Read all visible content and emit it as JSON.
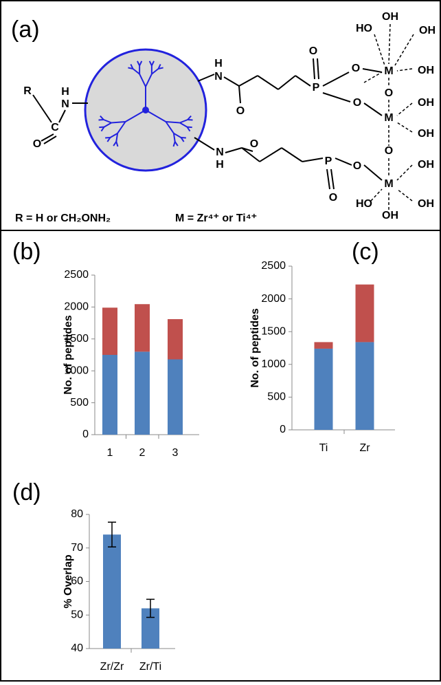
{
  "diagram": {
    "panel_label": "(a)",
    "atoms": [
      "R",
      "H",
      "N",
      "C",
      "O",
      "H",
      "N",
      "O",
      "P",
      "O",
      "O",
      "O",
      "N",
      "H",
      "O",
      "P",
      "O",
      "O",
      "M",
      "M",
      "M",
      "O",
      "O",
      "HO",
      "OH",
      "OH",
      "OH",
      "OH",
      "OH",
      "OH",
      "OH",
      "OH",
      "HO"
    ],
    "notes": [
      "R = H or CH₂ONH₂",
      "M = Zr⁴⁺ or Ti⁴⁺"
    ]
  },
  "chart_data": [
    {
      "type": "bar",
      "title": "(b)",
      "y_label": "No. of peptides",
      "categories": [
        "1",
        "2",
        "3"
      ],
      "series": [
        {
          "color": "#4f81bd",
          "values": [
            1250,
            1300,
            1180
          ]
        },
        {
          "color": "#c0504d",
          "values": [
            740,
            745,
            630
          ]
        }
      ],
      "ylim": [
        0,
        2500
      ],
      "yticks": [
        0,
        500,
        1000,
        1500,
        2000,
        2500
      ]
    },
    {
      "type": "bar",
      "title": "(c)",
      "y_label": "No. of peptides",
      "categories": [
        "Ti",
        "Zr"
      ],
      "series": [
        {
          "color": "#4f81bd",
          "values": [
            1240,
            1340
          ]
        },
        {
          "color": "#c0504d",
          "values": [
            100,
            880
          ]
        }
      ],
      "ylim": [
        0,
        2500
      ],
      "yticks": [
        0,
        500,
        1000,
        1500,
        2000,
        2500
      ]
    },
    {
      "type": "bar",
      "title": "(d)",
      "y_label": "% Overlap",
      "categories": [
        "Zr/Zr",
        "Zr/Ti"
      ],
      "series": [
        {
          "color": "#4f81bd",
          "values": [
            74,
            52
          ],
          "errors": [
            3.7,
            2.7
          ]
        }
      ],
      "ylim": [
        40,
        80
      ],
      "yticks": [
        40,
        50,
        60,
        70,
        80
      ]
    }
  ]
}
